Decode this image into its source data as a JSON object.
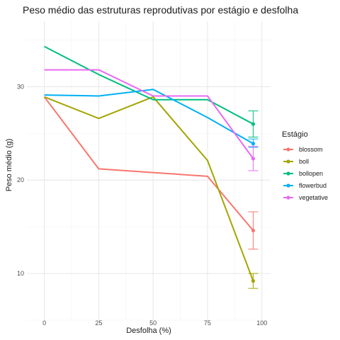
{
  "chart_data": {
    "type": "line",
    "title": "Peso médio das estruturas reprodutivas por estágio e desfolha",
    "xlabel": "Desfolha (%)",
    "ylabel": "Peso médio (g)",
    "xlim": [
      -8,
      104
    ],
    "ylim": [
      5,
      37
    ],
    "x_ticks": [
      0,
      25,
      50,
      75,
      100
    ],
    "y_ticks": [
      10,
      20,
      30
    ],
    "grid": true,
    "legend": {
      "title": "Estágio",
      "position": "right"
    },
    "x": [
      0,
      25,
      50,
      75
    ],
    "series": [
      {
        "name": "blossom",
        "color": "#F8766D",
        "values": [
          28.9,
          21.2,
          20.8,
          20.4
        ],
        "end": {
          "x": 96,
          "mean": 14.6,
          "lower": 12.6,
          "upper": 16.6
        }
      },
      {
        "name": "boll",
        "color": "#A3A500",
        "values": [
          28.9,
          26.6,
          28.9,
          22.1
        ],
        "end": {
          "x": 96,
          "mean": 9.2,
          "lower": 8.4,
          "upper": 10.0
        }
      },
      {
        "name": "bollopen",
        "color": "#00BF7D",
        "values": [
          34.3,
          31.3,
          28.6,
          28.6
        ],
        "end": {
          "x": 96,
          "mean": 26.0,
          "lower": 24.6,
          "upper": 27.4
        }
      },
      {
        "name": "flowerbud",
        "color": "#00B0F6",
        "values": [
          29.1,
          29.0,
          29.7,
          26.7
        ],
        "end": {
          "x": 96,
          "mean": 23.9,
          "lower": 23.5,
          "upper": 24.4
        }
      },
      {
        "name": "vegetative",
        "color": "#E76BF3",
        "values": [
          31.8,
          31.8,
          29.0,
          29.0
        ],
        "end": {
          "x": 96,
          "mean": 22.3,
          "lower": 21.0,
          "upper": 23.6
        }
      }
    ]
  }
}
